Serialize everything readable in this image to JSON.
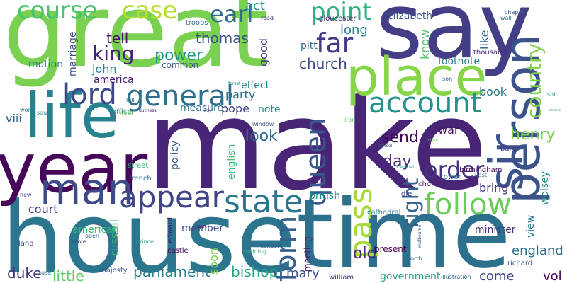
{
  "words": [
    {
      "text": "make",
      "color": "#482576"
    },
    {
      "text": "house",
      "color": "#2b758e"
    },
    {
      "text": "great",
      "color": "#7ad151"
    },
    {
      "text": "say",
      "color": "#433e85"
    },
    {
      "text": "time",
      "color": "#2d708e"
    },
    {
      "text": "year",
      "color": "#46075a"
    },
    {
      "text": "place",
      "color": "#86d549"
    },
    {
      "text": "person",
      "color": "#3b528b"
    },
    {
      "text": "life",
      "color": "#26828e"
    },
    {
      "text": "man",
      "color": "#3e4a89"
    },
    {
      "text": "general",
      "color": "#2e6e8e"
    },
    {
      "text": "sir",
      "color": "#3b528b"
    },
    {
      "text": "account",
      "color": "#21918c"
    },
    {
      "text": "appear",
      "color": "#404688"
    },
    {
      "text": "state",
      "color": "#2a768e"
    },
    {
      "text": "follow",
      "color": "#6ccd5a"
    },
    {
      "text": "lord",
      "color": "#3e4989"
    },
    {
      "text": "queen",
      "color": "#38588c"
    },
    {
      "text": "pass",
      "color": "#a5db36"
    },
    {
      "text": "course",
      "color": "#4ac16d"
    },
    {
      "text": "case",
      "color": "#b5de2b"
    },
    {
      "text": "far",
      "color": "#443a83"
    },
    {
      "text": "form",
      "color": "#355f8d"
    },
    {
      "text": "point",
      "color": "#2db27d"
    },
    {
      "text": "earl",
      "color": "#2f6c8e"
    },
    {
      "text": "king",
      "color": "#482475"
    },
    {
      "text": "country",
      "color": "#7fd34e"
    },
    {
      "text": "order",
      "color": "#46337e"
    },
    {
      "text": "right",
      "color": "#34608d"
    },
    {
      "text": "power",
      "color": "#1f988b"
    },
    {
      "text": "church",
      "color": "#3f4788"
    },
    {
      "text": "thomas",
      "color": "#3a538b"
    },
    {
      "text": "long",
      "color": "#287d8e"
    },
    {
      "text": "tell",
      "color": "#471365"
    },
    {
      "text": "send",
      "color": "#450559"
    },
    {
      "text": "look",
      "color": "#31688e"
    },
    {
      "text": "day",
      "color": "#482878"
    },
    {
      "text": "england",
      "color": "#2e6f8e"
    },
    {
      "text": "henry",
      "color": "#7ad151"
    },
    {
      "text": "parliament",
      "color": "#26818e"
    },
    {
      "text": "court",
      "color": "#472c7a"
    },
    {
      "text": "duke",
      "color": "#453882"
    },
    {
      "text": "little",
      "color": "#5ec962"
    },
    {
      "text": "bishop",
      "color": "#22a785"
    },
    {
      "text": "mary",
      "color": "#3c4f8a"
    },
    {
      "text": "old",
      "color": "#482576"
    },
    {
      "text": "come",
      "color": "#3f4889"
    },
    {
      "text": "vol",
      "color": "#440154"
    },
    {
      "text": "book",
      "color": "#2c738e"
    },
    {
      "text": "pope",
      "color": "#414487"
    },
    {
      "text": "war",
      "color": "#471365"
    },
    {
      "text": "bring",
      "color": "#46337e"
    },
    {
      "text": "party",
      "color": "#2f6b8e"
    },
    {
      "text": "effect",
      "color": "#26828e"
    },
    {
      "text": "footnote",
      "color": "#26828e"
    },
    {
      "text": "elizabeth",
      "color": "#3b528b"
    },
    {
      "text": "john",
      "color": "#25858e"
    },
    {
      "text": "america",
      "color": "#481d6f"
    },
    {
      "text": "motion",
      "color": "#29798e"
    },
    {
      "text": "marriage",
      "color": "#3c4f8a"
    },
    {
      "text": "good",
      "color": "#443b84"
    },
    {
      "text": "soon",
      "color": "#7ad151"
    },
    {
      "text": "know",
      "color": "#50c46a"
    },
    {
      "text": "like",
      "color": "#31688e"
    },
    {
      "text": "viii",
      "color": "#33638d"
    },
    {
      "text": "russell",
      "color": "#35b779"
    },
    {
      "text": "policy",
      "color": "#38588c"
    },
    {
      "text": "english",
      "color": "#3dbc74"
    },
    {
      "text": "measure",
      "color": "#2c728e"
    },
    {
      "text": "note",
      "color": "#228c8d"
    },
    {
      "text": "act",
      "color": "#20938c"
    },
    {
      "text": "british",
      "color": "#21918c"
    },
    {
      "text": "member",
      "color": "#3e4a89"
    },
    {
      "text": "american",
      "color": "#3dbc74"
    },
    {
      "text": "minister",
      "color": "#46327e"
    },
    {
      "text": "wolsey",
      "color": "#21908d"
    },
    {
      "text": "government",
      "color": "#21a685"
    },
    {
      "text": "meeting",
      "color": "#481b6d"
    },
    {
      "text": "present",
      "color": "#440154"
    },
    {
      "text": "view",
      "color": "#287d8e"
    },
    {
      "text": "richard",
      "color": "#3e4989"
    },
    {
      "text": "william",
      "color": "#46327e"
    },
    {
      "text": "pitt",
      "color": "#33638d"
    },
    {
      "text": "common",
      "color": "#3a548c"
    },
    {
      "text": "troops",
      "color": "#30698e"
    },
    {
      "text": "gloucester",
      "color": "#481f70"
    },
    {
      "text": "thousand",
      "color": "#482576"
    },
    {
      "text": "baron",
      "color": "#423f85"
    },
    {
      "text": "officer",
      "color": "#25838e"
    },
    {
      "text": "street",
      "color": "#35b779"
    },
    {
      "text": "french",
      "color": "#2c738e"
    },
    {
      "text": "castle",
      "color": "#440154"
    },
    {
      "text": "edward",
      "color": "#470e61"
    },
    {
      "text": "birmingham",
      "color": "#46085c"
    },
    {
      "text": "cathedral",
      "color": "#24878e"
    },
    {
      "text": "tower",
      "color": "#2c728e"
    },
    {
      "text": "choir",
      "color": "#471365"
    },
    {
      "text": "die",
      "color": "#414487"
    },
    {
      "text": "school",
      "color": "#3b528b"
    },
    {
      "text": "building",
      "color": "#40bd72"
    },
    {
      "text": "majesty",
      "color": "#3b528b"
    },
    {
      "text": "illustration",
      "color": "#2f6b8e"
    },
    {
      "text": "north",
      "color": "#31688e"
    },
    {
      "text": "nave",
      "color": "#443983"
    },
    {
      "text": "land",
      "color": "#3f4889"
    },
    {
      "text": "open",
      "color": "#2c738e"
    },
    {
      "text": "prince",
      "color": "#21a685"
    },
    {
      "text": "new",
      "color": "#414487"
    },
    {
      "text": "usa",
      "color": "#25838e"
    },
    {
      "text": "work",
      "color": "#26828e"
    },
    {
      "text": "south",
      "color": "#23898e"
    },
    {
      "text": "west",
      "color": "#6ece58"
    },
    {
      "text": "duchess",
      "color": "#482677"
    },
    {
      "text": "hill",
      "color": "#2a788e"
    },
    {
      "text": "lady",
      "color": "#404688"
    },
    {
      "text": "window",
      "color": "#3b528b"
    },
    {
      "text": "iron",
      "color": "#5ec962"
    },
    {
      "text": "road",
      "color": "#46337e"
    },
    {
      "text": "forest",
      "color": "#21918c"
    },
    {
      "text": "son",
      "color": "#355f8d"
    },
    {
      "text": "chapel",
      "color": "#39568c"
    },
    {
      "text": "wall",
      "color": "#31688e"
    },
    {
      "text": "ship",
      "color": "#1f9e89"
    },
    {
      "text": "princess",
      "color": "#2a768e"
    },
    {
      "text": "vast",
      "color": "#2c728e"
    },
    {
      "text": "town",
      "color": "#7ad151"
    },
    {
      "text": "school",
      "color": "#3b528b"
    },
    {
      "text": "melbourne",
      "color": "#3b528b"
    },
    {
      "text": "cardinal",
      "color": "#21918c"
    },
    {
      "text": "court",
      "color": "#46085c"
    }
  ]
}
